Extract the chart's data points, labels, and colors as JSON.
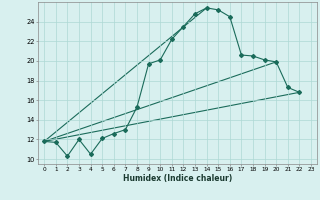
{
  "xlabel": "Humidex (Indice chaleur)",
  "line_color": "#1a6b5a",
  "bg_color": "#d8f0ef",
  "grid_color": "#aed8d4",
  "xlim": [
    -0.5,
    23.5
  ],
  "ylim": [
    9.5,
    26.0
  ],
  "yticks": [
    10,
    12,
    14,
    16,
    18,
    20,
    22,
    24
  ],
  "xticks": [
    0,
    1,
    2,
    3,
    4,
    5,
    6,
    7,
    8,
    9,
    10,
    11,
    12,
    13,
    14,
    15,
    16,
    17,
    18,
    19,
    20,
    21,
    22,
    23
  ],
  "xtick_labels": [
    "0",
    "1",
    "2",
    "3",
    "4",
    "5",
    "6",
    "7",
    "8",
    "9",
    "10",
    "11",
    "12",
    "13",
    "14",
    "15",
    "16",
    "17",
    "18",
    "19",
    "20",
    "21",
    "22",
    "23"
  ],
  "main_series": [
    [
      0,
      11.8
    ],
    [
      1,
      11.7
    ],
    [
      2,
      10.3
    ],
    [
      3,
      12.0
    ],
    [
      4,
      10.5
    ],
    [
      5,
      12.1
    ],
    [
      6,
      12.6
    ],
    [
      7,
      13.0
    ],
    [
      8,
      15.3
    ],
    [
      9,
      19.7
    ],
    [
      10,
      20.1
    ],
    [
      11,
      22.2
    ],
    [
      12,
      23.5
    ],
    [
      13,
      24.8
    ],
    [
      14,
      25.4
    ],
    [
      15,
      25.2
    ],
    [
      16,
      24.5
    ],
    [
      17,
      20.6
    ],
    [
      18,
      20.5
    ],
    [
      19,
      20.1
    ],
    [
      20,
      19.9
    ],
    [
      21,
      17.3
    ],
    [
      22,
      16.8
    ]
  ],
  "extra_lines": [
    [
      [
        0,
        11.8
      ],
      [
        22,
        16.8
      ]
    ],
    [
      [
        0,
        11.8
      ],
      [
        14,
        25.4
      ]
    ],
    [
      [
        0,
        11.8
      ],
      [
        20,
        19.9
      ]
    ]
  ]
}
